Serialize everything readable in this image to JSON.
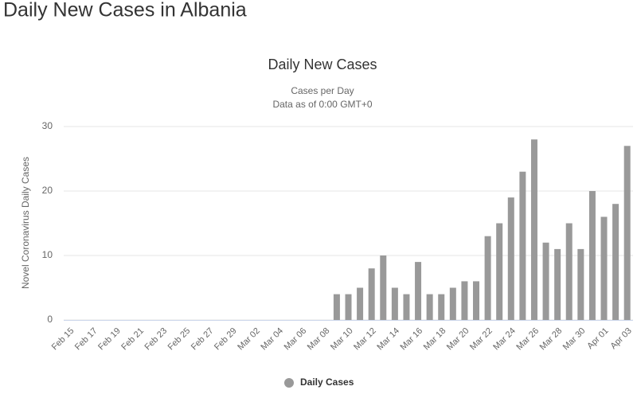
{
  "page_title": "Daily New Cases in Albania",
  "chart_data": {
    "type": "bar",
    "title": "Daily New Cases",
    "subtitle": [
      "Cases per Day",
      "Data as of 0:00 GMT+0"
    ],
    "y_label": "Novel Coronavirus Daily Cases",
    "categories": [
      "Feb 15",
      null,
      "Feb 17",
      null,
      "Feb 19",
      null,
      "Feb 21",
      null,
      "Feb 23",
      null,
      "Feb 25",
      null,
      "Feb 27",
      null,
      "Feb 29",
      null,
      "Mar 02",
      null,
      "Mar 04",
      null,
      "Mar 06",
      null,
      "Mar 08",
      null,
      "Mar 10",
      null,
      "Mar 12",
      null,
      "Mar 14",
      null,
      "Mar 16",
      null,
      "Mar 18",
      null,
      "Mar 20",
      null,
      "Mar 22",
      null,
      "Mar 24",
      null,
      "Mar 26",
      null,
      "Mar 28",
      null,
      "Mar 30",
      null,
      "Apr 01",
      null,
      "Apr 03"
    ],
    "series": [
      {
        "name": "Daily Cases",
        "color": "#999999",
        "values": [
          0,
          0,
          0,
          0,
          0,
          0,
          0,
          0,
          0,
          0,
          0,
          0,
          0,
          0,
          0,
          0,
          0,
          0,
          0,
          0,
          0,
          0,
          0,
          4,
          4,
          5,
          8,
          10,
          5,
          4,
          9,
          4,
          4,
          5,
          6,
          6,
          13,
          15,
          19,
          23,
          28,
          12,
          11,
          15,
          11,
          20,
          16,
          18,
          27
        ]
      }
    ],
    "ylim": [
      0,
      30
    ],
    "yticks": [
      0,
      10,
      20,
      30
    ],
    "grid": true,
    "legend": "bottom"
  }
}
